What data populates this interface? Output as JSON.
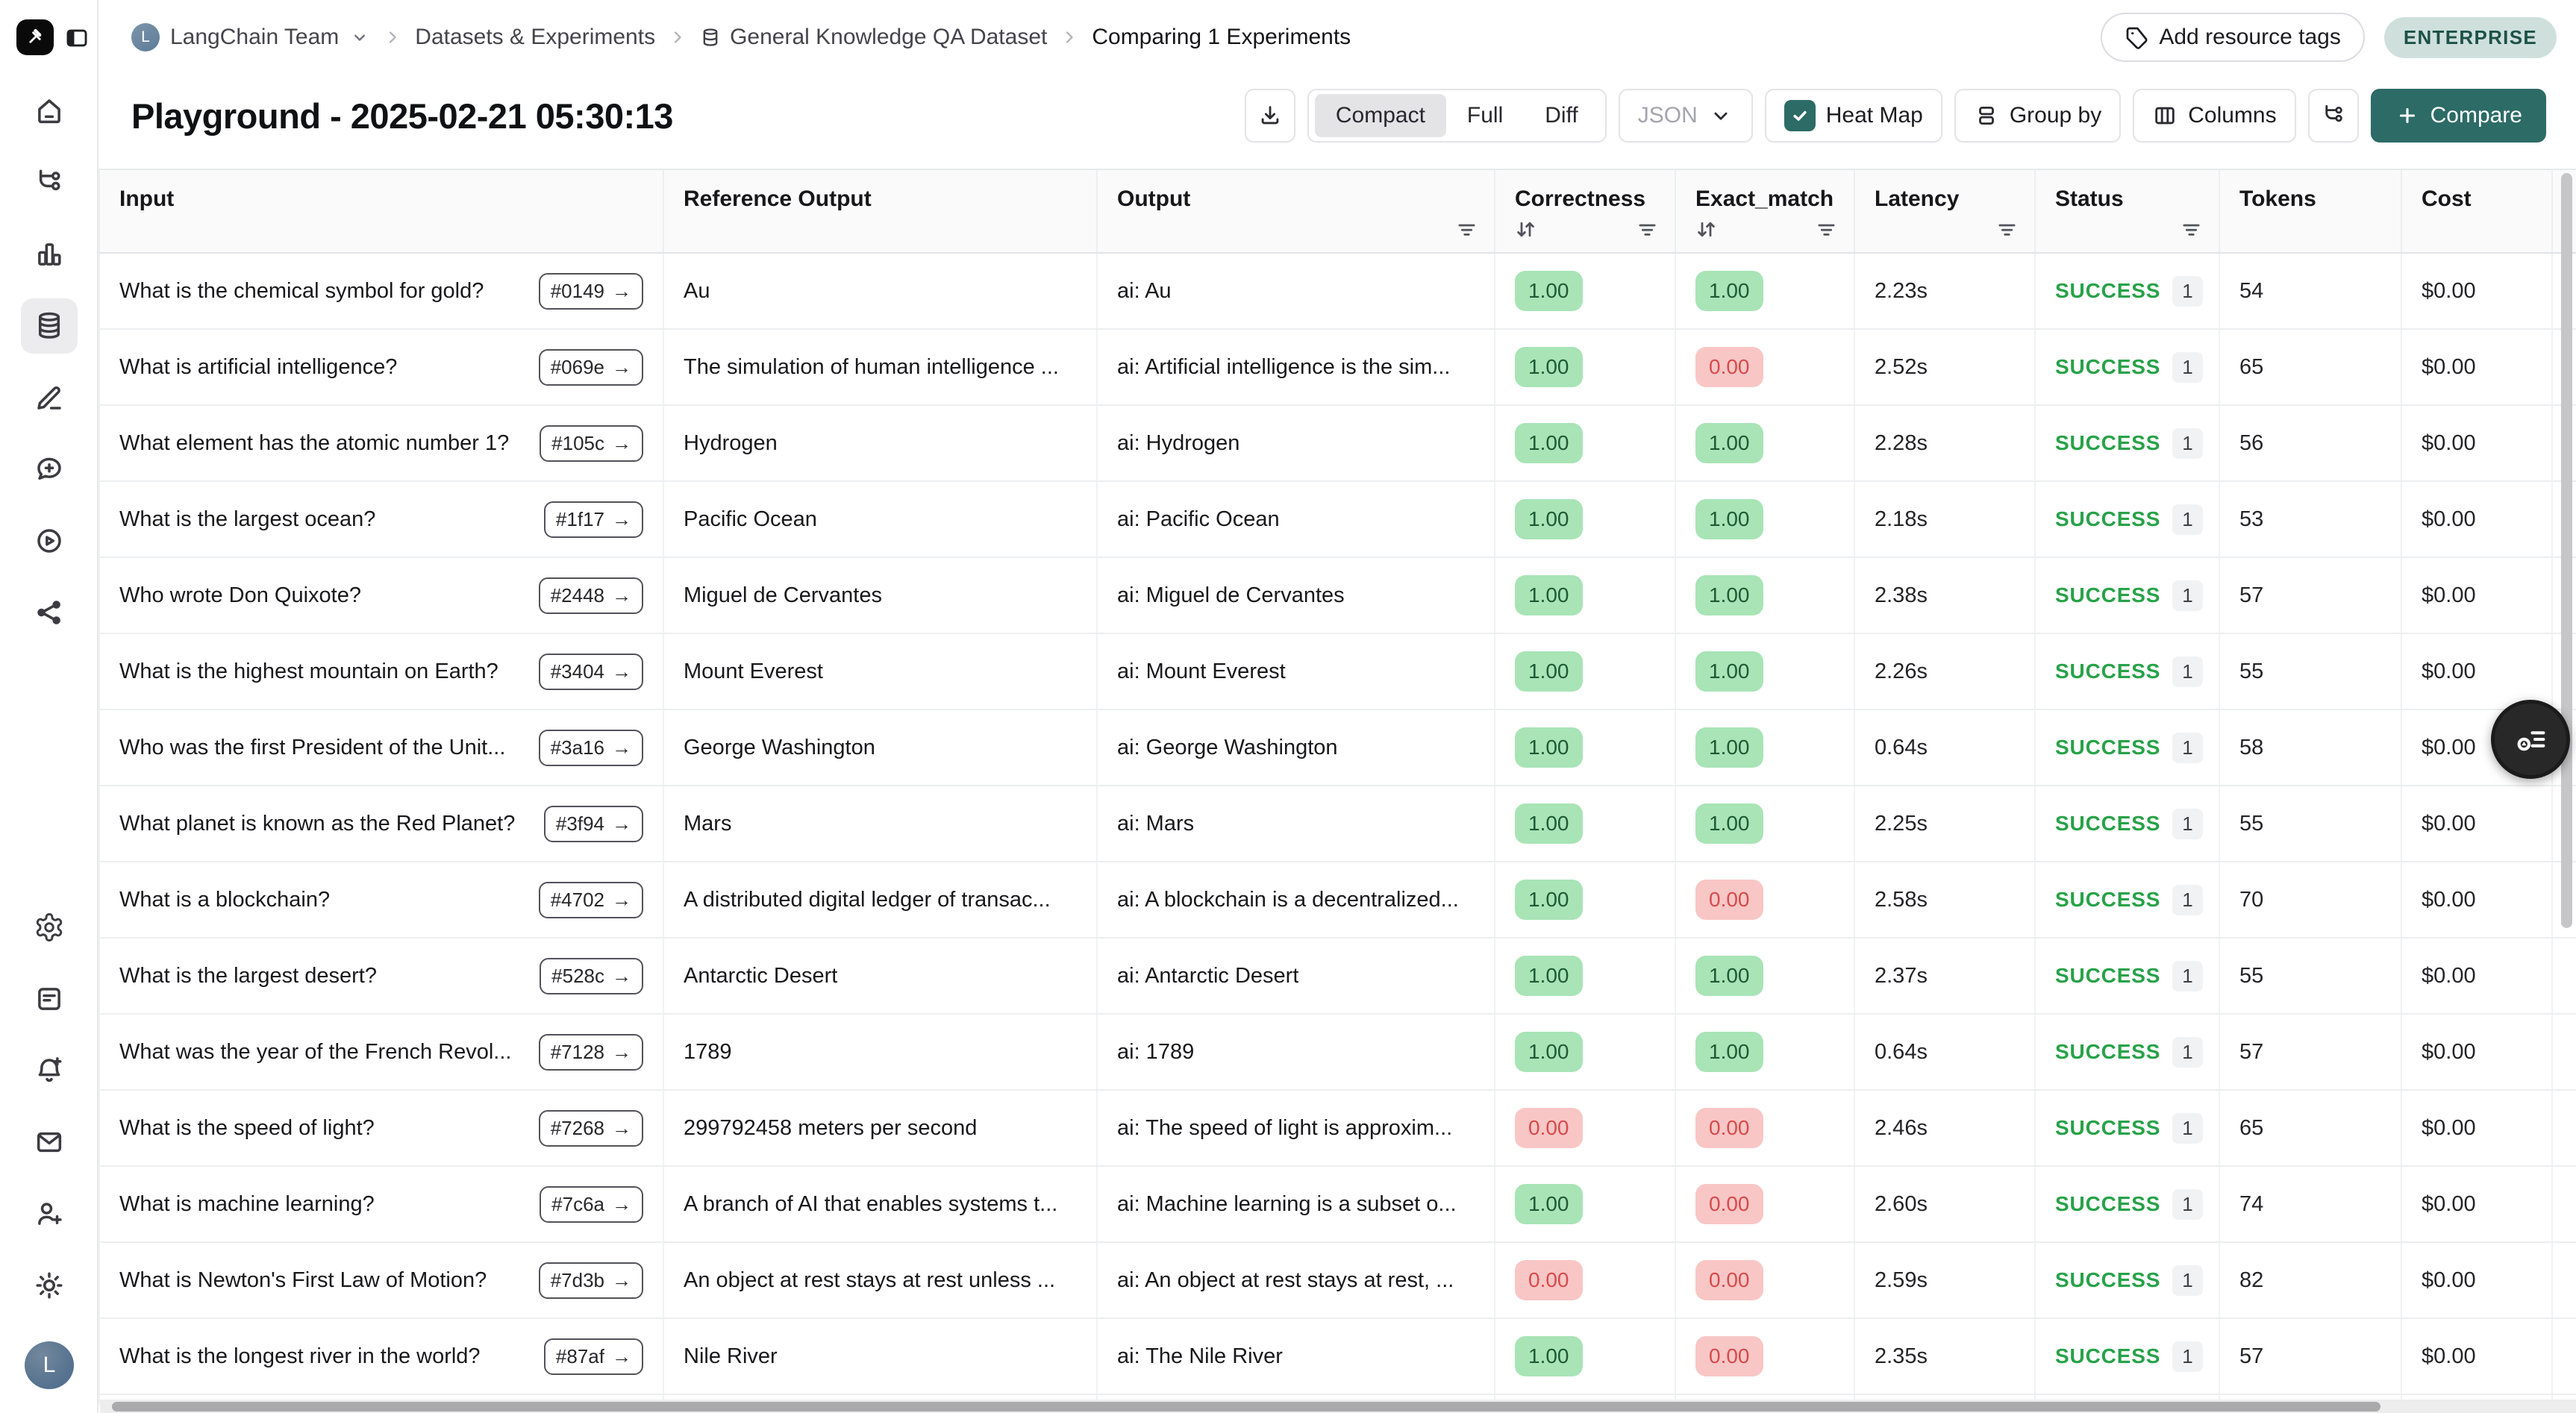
{
  "breadcrumb": {
    "team_label": "LangChain Team",
    "team_avatar_initial": "L",
    "items": [
      {
        "label": "Datasets & Experiments",
        "icon": null
      },
      {
        "label": "General Knowledge QA Dataset",
        "icon": "database"
      },
      {
        "label": "Comparing 1 Experiments",
        "icon": null
      }
    ]
  },
  "topbar": {
    "add_resource_tags_label": "Add resource tags",
    "enterprise_badge": "ENTERPRISE"
  },
  "header": {
    "title": "Playground - 2025-02-21 05:30:13",
    "toolbar": {
      "view_modes": [
        "Compact",
        "Full",
        "Diff"
      ],
      "active_view_mode": "Compact",
      "format_dropdown_label": "JSON",
      "format_dropdown_disabled": true,
      "heatmap_label": "Heat Map",
      "heatmap_checked": true,
      "group_by_label": "Group by",
      "columns_label": "Columns",
      "compare_label": "Compare"
    }
  },
  "icons": {
    "run_link_arrow": "→"
  },
  "sidebar": {
    "top_icons": [
      {
        "name": "home",
        "active": false
      },
      {
        "name": "tracing",
        "active": false
      },
      {
        "name": "monitoring",
        "active": false
      },
      {
        "name": "datasets",
        "active": true
      },
      {
        "name": "annotation",
        "active": false
      },
      {
        "name": "prompts",
        "active": false
      },
      {
        "name": "playground",
        "active": false
      },
      {
        "name": "graph",
        "active": false
      }
    ],
    "bottom_icons": [
      {
        "name": "settings",
        "active": false
      },
      {
        "name": "docs",
        "active": false
      },
      {
        "name": "notifications",
        "active": false
      },
      {
        "name": "mail",
        "active": false
      },
      {
        "name": "invite",
        "active": false
      },
      {
        "name": "theme",
        "active": false
      }
    ],
    "avatar_initial": "L"
  },
  "table": {
    "columns": [
      {
        "label": "Input",
        "sort": false,
        "filter": false
      },
      {
        "label": "Reference Output",
        "sort": false,
        "filter": false
      },
      {
        "label": "Output",
        "sort": false,
        "filter": true
      },
      {
        "label": "Correctness",
        "sort": true,
        "filter": true
      },
      {
        "label": "Exact_match",
        "sort": true,
        "filter": true
      },
      {
        "label": "Latency",
        "sort": false,
        "filter": true
      },
      {
        "label": "Status",
        "sort": false,
        "filter": true
      },
      {
        "label": "Tokens",
        "sort": false,
        "filter": false
      },
      {
        "label": "Cost",
        "sort": false,
        "filter": false
      }
    ],
    "rows": [
      {
        "input": "What is the chemical symbol for gold?",
        "example_id": "#0149",
        "reference_output": "Au",
        "output": "ai: Au",
        "correctness": "1.00",
        "correctness_state": "pass",
        "exact_match": "1.00",
        "exact_state": "pass",
        "latency": "2.23s",
        "status": "SUCCESS",
        "status_count": "1",
        "tokens": "54",
        "cost": "$0.00"
      },
      {
        "input": "What is artificial intelligence?",
        "example_id": "#069e",
        "reference_output": "The simulation of human intelligence ...",
        "output": "ai: Artificial intelligence is the sim...",
        "correctness": "1.00",
        "correctness_state": "pass",
        "exact_match": "0.00",
        "exact_state": "fail",
        "latency": "2.52s",
        "status": "SUCCESS",
        "status_count": "1",
        "tokens": "65",
        "cost": "$0.00"
      },
      {
        "input": "What element has the atomic number 1?",
        "example_id": "#105c",
        "reference_output": "Hydrogen",
        "output": "ai: Hydrogen",
        "correctness": "1.00",
        "correctness_state": "pass",
        "exact_match": "1.00",
        "exact_state": "pass",
        "latency": "2.28s",
        "status": "SUCCESS",
        "status_count": "1",
        "tokens": "56",
        "cost": "$0.00"
      },
      {
        "input": "What is the largest ocean?",
        "example_id": "#1f17",
        "reference_output": "Pacific Ocean",
        "output": "ai: Pacific Ocean",
        "correctness": "1.00",
        "correctness_state": "pass",
        "exact_match": "1.00",
        "exact_state": "pass",
        "latency": "2.18s",
        "status": "SUCCESS",
        "status_count": "1",
        "tokens": "53",
        "cost": "$0.00"
      },
      {
        "input": "Who wrote Don Quixote?",
        "example_id": "#2448",
        "reference_output": "Miguel de Cervantes",
        "output": "ai: Miguel de Cervantes",
        "correctness": "1.00",
        "correctness_state": "pass",
        "exact_match": "1.00",
        "exact_state": "pass",
        "latency": "2.38s",
        "status": "SUCCESS",
        "status_count": "1",
        "tokens": "57",
        "cost": "$0.00"
      },
      {
        "input": "What is the highest mountain on Earth?",
        "example_id": "#3404",
        "reference_output": "Mount Everest",
        "output": "ai: Mount Everest",
        "correctness": "1.00",
        "correctness_state": "pass",
        "exact_match": "1.00",
        "exact_state": "pass",
        "latency": "2.26s",
        "status": "SUCCESS",
        "status_count": "1",
        "tokens": "55",
        "cost": "$0.00"
      },
      {
        "input": "Who was the first President of the Unit...",
        "example_id": "#3a16",
        "reference_output": "George Washington",
        "output": "ai: George Washington",
        "correctness": "1.00",
        "correctness_state": "pass",
        "exact_match": "1.00",
        "exact_state": "pass",
        "latency": "0.64s",
        "status": "SUCCESS",
        "status_count": "1",
        "tokens": "58",
        "cost": "$0.00"
      },
      {
        "input": "What planet is known as the Red Planet?",
        "example_id": "#3f94",
        "reference_output": "Mars",
        "output": "ai: Mars",
        "correctness": "1.00",
        "correctness_state": "pass",
        "exact_match": "1.00",
        "exact_state": "pass",
        "latency": "2.25s",
        "status": "SUCCESS",
        "status_count": "1",
        "tokens": "55",
        "cost": "$0.00"
      },
      {
        "input": "What is a blockchain?",
        "example_id": "#4702",
        "reference_output": "A distributed digital ledger of transac...",
        "output": "ai: A blockchain is a decentralized...",
        "correctness": "1.00",
        "correctness_state": "pass",
        "exact_match": "0.00",
        "exact_state": "fail",
        "latency": "2.58s",
        "status": "SUCCESS",
        "status_count": "1",
        "tokens": "70",
        "cost": "$0.00"
      },
      {
        "input": "What is the largest desert?",
        "example_id": "#528c",
        "reference_output": "Antarctic Desert",
        "output": "ai: Antarctic Desert",
        "correctness": "1.00",
        "correctness_state": "pass",
        "exact_match": "1.00",
        "exact_state": "pass",
        "latency": "2.37s",
        "status": "SUCCESS",
        "status_count": "1",
        "tokens": "55",
        "cost": "$0.00"
      },
      {
        "input": "What was the year of the French Revol...",
        "example_id": "#7128",
        "reference_output": "1789",
        "output": "ai: 1789",
        "correctness": "1.00",
        "correctness_state": "pass",
        "exact_match": "1.00",
        "exact_state": "pass",
        "latency": "0.64s",
        "status": "SUCCESS",
        "status_count": "1",
        "tokens": "57",
        "cost": "$0.00"
      },
      {
        "input": "What is the speed of light?",
        "example_id": "#7268",
        "reference_output": "299792458 meters per second",
        "output": "ai: The speed of light is approxim...",
        "correctness": "0.00",
        "correctness_state": "fail",
        "exact_match": "0.00",
        "exact_state": "fail",
        "latency": "2.46s",
        "status": "SUCCESS",
        "status_count": "1",
        "tokens": "65",
        "cost": "$0.00"
      },
      {
        "input": "What is machine learning?",
        "example_id": "#7c6a",
        "reference_output": "A branch of AI that enables systems t...",
        "output": "ai: Machine learning is a subset o...",
        "correctness": "1.00",
        "correctness_state": "pass",
        "exact_match": "0.00",
        "exact_state": "fail",
        "latency": "2.60s",
        "status": "SUCCESS",
        "status_count": "1",
        "tokens": "74",
        "cost": "$0.00"
      },
      {
        "input": "What is Newton's First Law of Motion?",
        "example_id": "#7d3b",
        "reference_output": "An object at rest stays at rest unless ...",
        "output": "ai: An object at rest stays at rest, ...",
        "correctness": "0.00",
        "correctness_state": "fail",
        "exact_match": "0.00",
        "exact_state": "fail",
        "latency": "2.59s",
        "status": "SUCCESS",
        "status_count": "1",
        "tokens": "82",
        "cost": "$0.00"
      },
      {
        "input": "What is the longest river in the world?",
        "example_id": "#87af",
        "reference_output": "Nile River",
        "output": "ai: The Nile River",
        "correctness": "1.00",
        "correctness_state": "pass",
        "exact_match": "0.00",
        "exact_state": "fail",
        "latency": "2.35s",
        "status": "SUCCESS",
        "status_count": "1",
        "tokens": "57",
        "cost": "$0.00"
      }
    ]
  },
  "colors": {
    "accent_teal": "#2d6b66",
    "success_green": "#27a248",
    "pass_badge_bg": "#a8e4b6",
    "pass_badge_text": "#1d5a35",
    "fail_badge_bg": "#f9c6c6",
    "fail_badge_text": "#d64b4b",
    "enterprise_bg": "#cfe0dc",
    "enterprise_text": "#1d5149",
    "header_bg": "#fafafa"
  }
}
